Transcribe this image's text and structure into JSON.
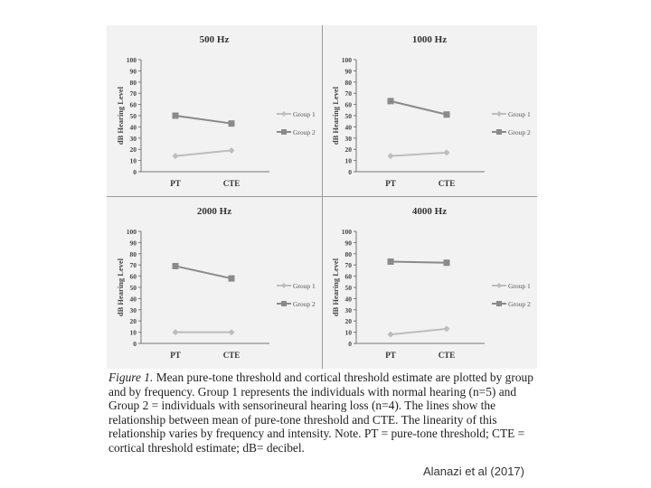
{
  "figure": {
    "caption_label": "Figure 1.",
    "caption_body": " Mean pure-tone threshold and cortical threshold estimate are plotted by group and by frequency. Group 1 represents the individuals with normal hearing (n=5) and Group 2 = individuals with sensorineural hearing loss (n=4). The lines show the relationship between mean of pure-tone threshold and CTE. The linearity of this relationship varies by frequency and intensity. Note. PT = pure-tone threshold; CTE = cortical threshold estimate; dB= decibel.",
    "citation": "Alanazi et al (2017)"
  },
  "chart_data": [
    {
      "type": "line",
      "title": "500 Hz",
      "categories": [
        "PT",
        "CTE"
      ],
      "ylabel": "dB Hearing Level",
      "ylim": [
        0,
        100
      ],
      "yticks": [
        "0",
        "10",
        "20",
        "30",
        "40",
        "50",
        "60",
        "70",
        "80",
        "90",
        "100"
      ],
      "series": [
        {
          "name": "Group 1",
          "values": [
            14,
            19
          ],
          "color": "#bdbdbd"
        },
        {
          "name": "Group 2",
          "values": [
            50,
            43
          ],
          "color": "#8a8a8a"
        }
      ]
    },
    {
      "type": "line",
      "title": "1000 Hz",
      "categories": [
        "PT",
        "CTE"
      ],
      "ylabel": "dB Hearing Level",
      "ylim": [
        0,
        100
      ],
      "yticks": [
        "0",
        "10",
        "20",
        "30",
        "40",
        "50",
        "60",
        "70",
        "80",
        "90",
        "100"
      ],
      "series": [
        {
          "name": "Group 1",
          "values": [
            14,
            17
          ],
          "color": "#bdbdbd"
        },
        {
          "name": "Group 2",
          "values": [
            63,
            51
          ],
          "color": "#8a8a8a"
        }
      ]
    },
    {
      "type": "line",
      "title": "2000 Hz",
      "categories": [
        "PT",
        "CTE"
      ],
      "ylabel": "dB Hearing Level",
      "ylim": [
        0,
        100
      ],
      "yticks": [
        "0",
        "10",
        "20",
        "30",
        "40",
        "50",
        "60",
        "70",
        "80",
        "90",
        "100"
      ],
      "series": [
        {
          "name": "Group 1",
          "values": [
            10,
            10
          ],
          "color": "#bdbdbd"
        },
        {
          "name": "Group 2",
          "values": [
            69,
            58
          ],
          "color": "#8a8a8a"
        }
      ]
    },
    {
      "type": "line",
      "title": "4000 Hz",
      "categories": [
        "PT",
        "CTE"
      ],
      "ylabel": "dB Hearing Level",
      "ylim": [
        0,
        100
      ],
      "yticks": [
        "0",
        "10",
        "20",
        "30",
        "40",
        "50",
        "60",
        "70",
        "80",
        "90",
        "100"
      ],
      "series": [
        {
          "name": "Group 1",
          "values": [
            8,
            13
          ],
          "color": "#bdbdbd"
        },
        {
          "name": "Group 2",
          "values": [
            73,
            72
          ],
          "color": "#8a8a8a"
        }
      ]
    }
  ]
}
